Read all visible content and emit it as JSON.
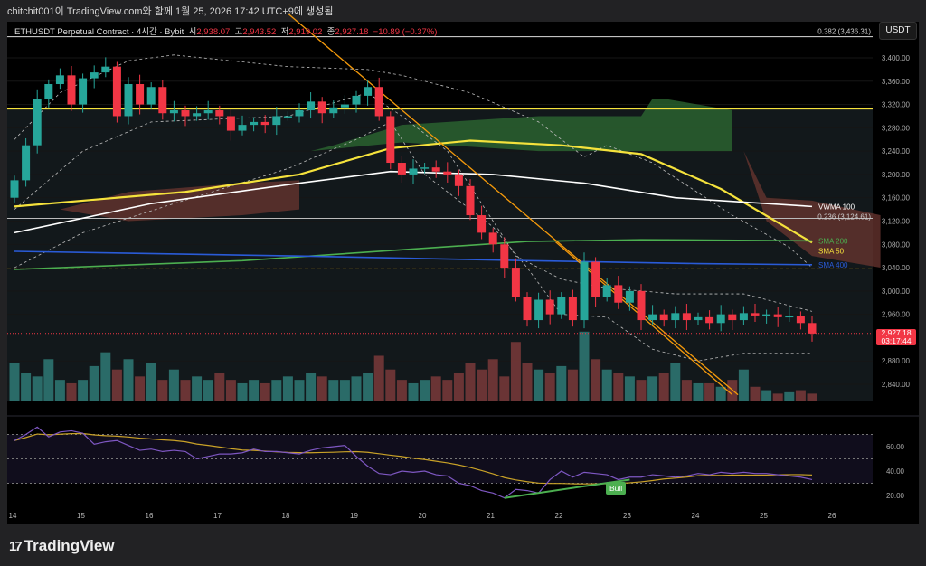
{
  "caption": "chitchit001이 TradingView.com와 함께 1월 25, 2026 17:42 UTC+9에 생성됨",
  "legend": {
    "symbol": "ETHUSDT Perpetual Contract · 4시간 · Bybit",
    "o_label": "시",
    "o": "2,938.07",
    "h_label": "고",
    "h": "2,943.52",
    "l_label": "저",
    "l": "2,919.02",
    "c_label": "종",
    "c": "2,927.18",
    "chg": "−10.89 (−0.37%)"
  },
  "unit": "USDT",
  "price_label": {
    "price": "2,927.18",
    "countdown": "03:17:44"
  },
  "footer": {
    "brand": "TradingView",
    "mark": "17"
  },
  "bull_label": "Bull",
  "colors": {
    "up": "#26a69a",
    "down": "#f23645",
    "sma50": "#f5e23c",
    "sma200": "#4caf50",
    "sma400": "#2a5bd7",
    "vwma": "#ffffff",
    "trend": "#f59a0b",
    "rsi": "#7e57c2",
    "rsi_ma": "#c9a227"
  },
  "chart_data": {
    "type": "candlestick",
    "title": "ETHUSDT Perpetual Contract · 4h · Bybit",
    "ylim": [
      2820,
      3460
    ],
    "yticks": [
      "3,400.00",
      "3,360.00",
      "3,320.00",
      "3,280.00",
      "3,240.00",
      "3,200.00",
      "3,160.00",
      "3,120.00",
      "3,080.00",
      "3,040.00",
      "3,000.00",
      "2,960.00",
      "2,880.00",
      "2,840.00"
    ],
    "ytick_values": [
      3400,
      3360,
      3320,
      3280,
      3240,
      3200,
      3160,
      3120,
      3080,
      3040,
      3000,
      2960,
      2880,
      2840
    ],
    "xticks": [
      "14",
      "15",
      "16",
      "17",
      "18",
      "19",
      "20",
      "21",
      "22",
      "23",
      "24",
      "25",
      "26"
    ],
    "closes": [
      3190,
      3250,
      3330,
      3355,
      3370,
      3320,
      3365,
      3375,
      3385,
      3300,
      3355,
      3320,
      3350,
      3305,
      3310,
      3300,
      3305,
      3310,
      3300,
      3275,
      3285,
      3290,
      3285,
      3300,
      3300,
      3310,
      3325,
      3305,
      3315,
      3320,
      3335,
      3350,
      3300,
      3220,
      3200,
      3210,
      3212,
      3205,
      3200,
      3180,
      3130,
      3100,
      3080,
      3040,
      2990,
      2950,
      2985,
      2960,
      2990,
      2950,
      3050,
      2990,
      3010,
      2980,
      3000,
      2950,
      2960,
      2950,
      2962,
      2950,
      2955,
      2945,
      2960,
      2950,
      2962,
      2958,
      2960,
      2955,
      2957,
      2945,
      2927
    ],
    "volumes": [
      55,
      40,
      35,
      60,
      30,
      25,
      30,
      50,
      70,
      45,
      60,
      35,
      55,
      30,
      45,
      30,
      35,
      30,
      40,
      30,
      25,
      30,
      25,
      30,
      35,
      30,
      40,
      35,
      30,
      30,
      35,
      40,
      65,
      45,
      30,
      25,
      30,
      35,
      30,
      40,
      55,
      45,
      60,
      35,
      85,
      55,
      45,
      40,
      50,
      45,
      100,
      60,
      45,
      40,
      35,
      30,
      35,
      40,
      55,
      30,
      25,
      25,
      20,
      30,
      45,
      20,
      15,
      10,
      12,
      15,
      10
    ],
    "volume_ylim": [
      0,
      105
    ],
    "overlays": [
      {
        "name": "SMA 50",
        "label": "SMA 50",
        "color": "#f5e23c",
        "points": [
          [
            0,
            3145
          ],
          [
            15,
            3170
          ],
          [
            25,
            3200
          ],
          [
            33,
            3245
          ],
          [
            40,
            3258
          ],
          [
            48,
            3250
          ],
          [
            55,
            3235
          ],
          [
            62,
            3175
          ],
          [
            70,
            3083
          ]
        ]
      },
      {
        "name": "VWMA 100",
        "label": "VWMA 100",
        "color": "#ffffff",
        "points": [
          [
            0,
            3100
          ],
          [
            12,
            3150
          ],
          [
            25,
            3185
          ],
          [
            33,
            3205
          ],
          [
            42,
            3200
          ],
          [
            50,
            3185
          ],
          [
            58,
            3160
          ],
          [
            70,
            3145
          ]
        ]
      },
      {
        "name": "SMA 200",
        "label": "SMA 200",
        "color": "#4caf50",
        "points": [
          [
            0,
            3037
          ],
          [
            20,
            3052
          ],
          [
            35,
            3072
          ],
          [
            45,
            3085
          ],
          [
            55,
            3088
          ],
          [
            70,
            3086
          ]
        ]
      },
      {
        "name": "SMA 400",
        "label": "SMA 400",
        "color": "#2a5bd7",
        "points": [
          [
            0,
            3068
          ],
          [
            25,
            3060
          ],
          [
            45,
            3052
          ],
          [
            60,
            3047
          ],
          [
            70,
            3045
          ]
        ]
      }
    ],
    "bands": [
      {
        "name": "bb-upper",
        "points": [
          [
            0,
            3260
          ],
          [
            4,
            3340
          ],
          [
            10,
            3395
          ],
          [
            14,
            3405
          ],
          [
            24,
            3385
          ],
          [
            31,
            3380
          ],
          [
            34,
            3370
          ],
          [
            40,
            3340
          ],
          [
            46,
            3290
          ],
          [
            50,
            3230
          ],
          [
            52,
            3250
          ],
          [
            56,
            3220
          ],
          [
            63,
            3130
          ],
          [
            68,
            3075
          ],
          [
            70,
            3040
          ]
        ]
      },
      {
        "name": "bb-mid",
        "points": [
          [
            0,
            3140
          ],
          [
            6,
            3240
          ],
          [
            12,
            3290
          ],
          [
            24,
            3300
          ],
          [
            31,
            3340
          ],
          [
            34,
            3300
          ],
          [
            38,
            3240
          ],
          [
            44,
            3060
          ],
          [
            48,
            3020
          ],
          [
            52,
            3005
          ],
          [
            58,
            2995
          ],
          [
            64,
            2995
          ],
          [
            70,
            2965
          ]
        ]
      },
      {
        "name": "bb-lower",
        "points": [
          [
            0,
            3040
          ],
          [
            6,
            3100
          ],
          [
            14,
            3150
          ],
          [
            24,
            3210
          ],
          [
            30,
            3260
          ],
          [
            33,
            3290
          ],
          [
            36,
            3200
          ],
          [
            42,
            3110
          ],
          [
            45,
            3040
          ],
          [
            48,
            2960
          ],
          [
            52,
            2955
          ],
          [
            56,
            2900
          ],
          [
            60,
            2880
          ],
          [
            64,
            2893
          ],
          [
            70,
            2893
          ]
        ]
      }
    ],
    "hlines": [
      {
        "label": "0.382 (3,436.31)",
        "price": 3436.31,
        "color": "#dddddd"
      },
      {
        "label": "0.236 (3,124.61)",
        "price": 3124.61,
        "color": "#bbbbbb"
      },
      {
        "label": "",
        "price": 3313,
        "color": "#f5e23c"
      },
      {
        "label": "",
        "price": 3038,
        "color": "#c9b420"
      }
    ],
    "trendlines": [
      [
        [
          24,
          3476
        ],
        [
          63.5,
          2822
        ]
      ],
      [
        [
          47.5,
          3084
        ],
        [
          63,
          2822
        ]
      ]
    ],
    "clouds": [
      {
        "color": "#2e6b33",
        "points": [
          [
            26,
            3240
          ],
          [
            28,
            3250
          ],
          [
            34,
            3285
          ],
          [
            46,
            3300
          ],
          [
            55,
            3300
          ],
          [
            56,
            3330
          ],
          [
            57,
            3330
          ],
          [
            63,
            3310
          ],
          [
            63,
            3240
          ],
          [
            55,
            3240
          ],
          [
            46,
            3240
          ],
          [
            34,
            3255
          ],
          [
            26,
            3240
          ]
        ]
      },
      {
        "color": "#6b3530",
        "points": [
          [
            4,
            3140
          ],
          [
            10,
            3170
          ],
          [
            20,
            3185
          ],
          [
            25,
            3190
          ],
          [
            25,
            3140
          ],
          [
            20,
            3130
          ],
          [
            10,
            3120
          ],
          [
            4,
            3140
          ]
        ]
      },
      {
        "color": "#6b3530",
        "points": [
          [
            64,
            3240
          ],
          [
            66,
            3160
          ],
          [
            70,
            3155
          ],
          [
            76,
            3130
          ],
          [
            76,
            3040
          ],
          [
            70,
            3060
          ],
          [
            66,
            3120
          ],
          [
            64,
            3240
          ]
        ]
      }
    ],
    "rsi": {
      "yticks": [
        "60.00",
        "40.00",
        "20.00"
      ],
      "ytick_values": [
        60,
        40,
        20
      ],
      "levels": [
        70,
        50,
        30
      ],
      "values": [
        65,
        70,
        76,
        68,
        72,
        73,
        71,
        62,
        64,
        65,
        61,
        57,
        58,
        56,
        57,
        56,
        50,
        52,
        54,
        54,
        55,
        58,
        56,
        56,
        55,
        54,
        57,
        59,
        60,
        61,
        52,
        44,
        38,
        37,
        40,
        39,
        40,
        37,
        36,
        30,
        28,
        24,
        22,
        18,
        25,
        24,
        22,
        33,
        40,
        35,
        39,
        38,
        37,
        33,
        35,
        35,
        37,
        36,
        35,
        36,
        38,
        37,
        39,
        38,
        39,
        38,
        38,
        37,
        36,
        35,
        33
      ],
      "divergence": [
        [
          43,
          18
        ],
        [
          54,
          33
        ]
      ]
    }
  }
}
